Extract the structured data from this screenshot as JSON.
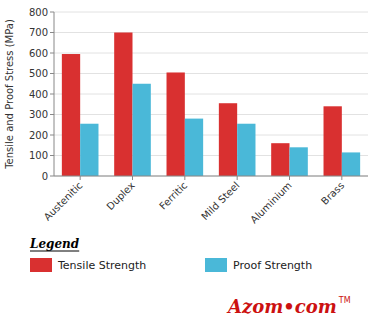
{
  "chart_data": {
    "type": "bar",
    "categories": [
      "Austenitic",
      "Duplex",
      "Ferritic",
      "Mild Steel",
      "Aluminium",
      "Brass"
    ],
    "series": [
      {
        "name": "Tensile Strength",
        "color": "#d93030",
        "values": [
          595,
          700,
          505,
          355,
          160,
          340
        ]
      },
      {
        "name": "Proof Strength",
        "color": "#4ab8d8",
        "values": [
          255,
          450,
          280,
          255,
          140,
          115
        ]
      }
    ],
    "ylabel": "Tensile and Proof Stress (MPa)",
    "ylim": [
      0,
      800
    ],
    "yticks": [
      0,
      100,
      200,
      300,
      400,
      500,
      600,
      700,
      800
    ],
    "grid": true,
    "legend": "bottom",
    "legend_title": "Legend",
    "annotations": [
      {
        "text": "Azom•com",
        "color": "#cc1111"
      },
      {
        "text": "TM",
        "color": "#cc1111"
      }
    ]
  }
}
